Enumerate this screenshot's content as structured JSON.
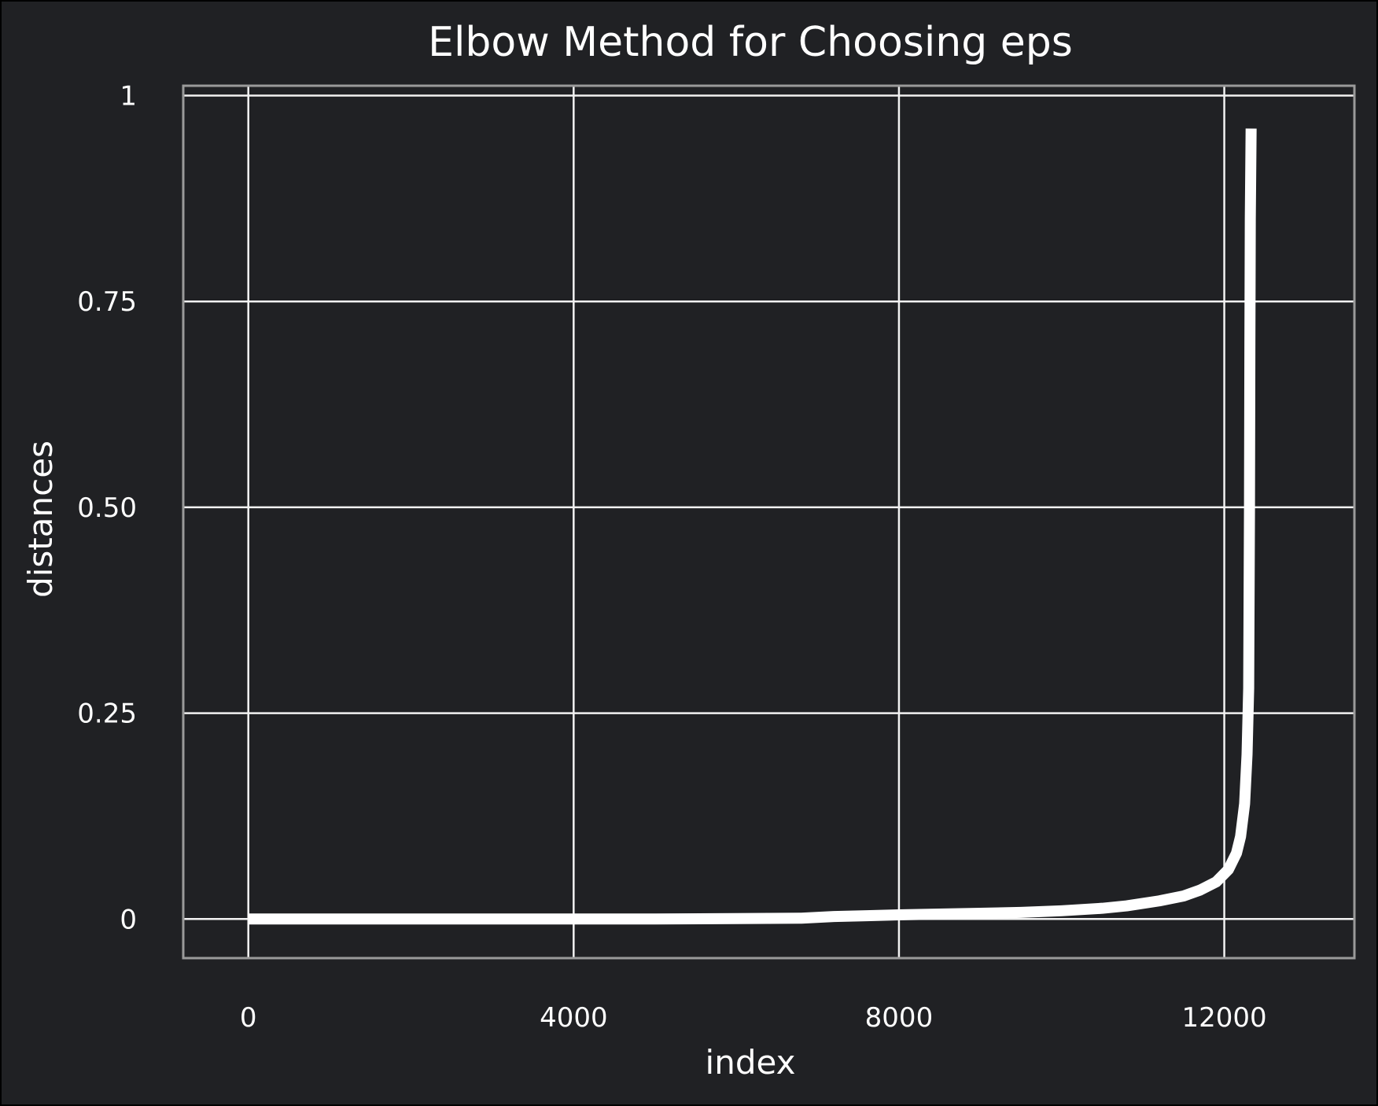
{
  "chart_data": {
    "type": "line",
    "title": "Elbow Method for Choosing eps",
    "xlabel": "index",
    "ylabel": "distances",
    "xlim": [
      -800,
      13600
    ],
    "ylim": [
      -0.0475,
      1.012
    ],
    "xticks": [
      0,
      4000,
      8000,
      12000
    ],
    "xtick_labels": [
      "0",
      "4000",
      "8000",
      "12000"
    ],
    "yticks": [
      0,
      0.25,
      0.5,
      0.75,
      1
    ],
    "ytick_labels": [
      "0",
      "0.25",
      "0.50",
      "0.75",
      "1"
    ],
    "grid": true,
    "colors": {
      "background": "#202124",
      "line": "#ffffff",
      "grid": "#f2f2f2",
      "frame": "#9a9a9a",
      "text": "#ffffff"
    },
    "series": [
      {
        "x": [
          0,
          1000,
          2000,
          3000,
          4000,
          5000,
          6000,
          6800,
          7200,
          7600,
          8000,
          8500,
          9000,
          9500,
          10000,
          10500,
          10800,
          11200,
          11500,
          11700,
          11900,
          12050,
          12150,
          12200,
          12250,
          12280,
          12300,
          12310,
          12315,
          12320,
          12330
        ],
        "y": [
          0,
          0,
          0,
          0,
          0,
          0,
          0.0005,
          0.001,
          0.003,
          0.004,
          0.005,
          0.006,
          0.007,
          0.008,
          0.01,
          0.013,
          0.016,
          0.022,
          0.028,
          0.035,
          0.045,
          0.06,
          0.08,
          0.1,
          0.14,
          0.2,
          0.28,
          0.5,
          0.7,
          0.85,
          0.96
        ]
      }
    ]
  }
}
